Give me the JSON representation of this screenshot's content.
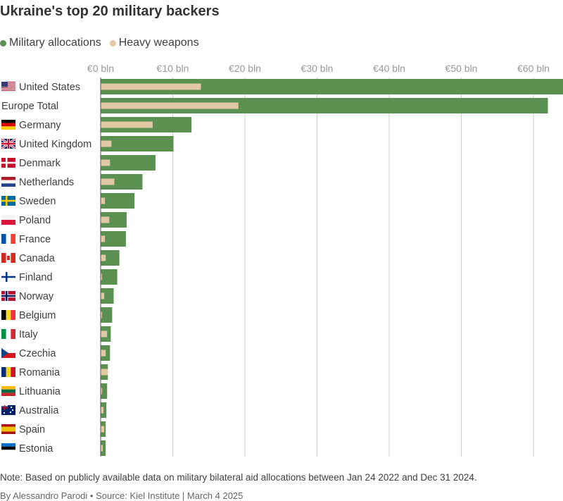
{
  "title": "Ukraine's top 20 military backers",
  "legend": [
    {
      "label": "Military allocations",
      "color": "#5a9150"
    },
    {
      "label": "Heavy weapons",
      "color": "#e0c9a4"
    }
  ],
  "note": "Note: Based on publicly available data on military bilateral aid allocations between Jan 24 2022 and Dec 31 2024.",
  "byline": "By Alessandro Parodi • Source: Kiel Institute | March 4 2025",
  "chart_data": {
    "type": "bar",
    "orientation": "horizontal",
    "xlim": [
      0,
      64
    ],
    "xticks": [
      0,
      10,
      20,
      30,
      40,
      50,
      60
    ],
    "xtick_labels": [
      "€0 bln",
      "€10 bln",
      "€20 bln",
      "€30 bln",
      "€40 bln",
      "€50 bln",
      "€60 bln"
    ],
    "grid": true,
    "categories": [
      "United States",
      "Europe Total",
      "Germany",
      "United Kingdom",
      "Denmark",
      "Netherlands",
      "Sweden",
      "Poland",
      "France",
      "Canada",
      "Finland",
      "Norway",
      "Belgium",
      "Italy",
      "Czechia",
      "Romania",
      "Lithuania",
      "Australia",
      "Spain",
      "Estonia"
    ],
    "flags": [
      "us",
      "",
      "de",
      "gb",
      "dk",
      "nl",
      "se",
      "pl",
      "fr",
      "ca",
      "fi",
      "no",
      "be",
      "it",
      "cz",
      "ro",
      "lt",
      "au",
      "es",
      "ee"
    ],
    "series": [
      {
        "name": "Military allocations",
        "color": "#5a9150",
        "values": [
          64.1,
          62.0,
          12.6,
          10.1,
          7.6,
          5.8,
          4.7,
          3.6,
          3.5,
          2.6,
          2.3,
          1.8,
          1.6,
          1.4,
          1.3,
          1.0,
          0.9,
          0.8,
          0.7,
          0.7
        ]
      },
      {
        "name": "Heavy weapons",
        "color": "#e0c9a4",
        "values": [
          13.9,
          19.1,
          7.2,
          1.5,
          1.3,
          1.9,
          0.6,
          1.2,
          0.6,
          0.7,
          0.2,
          0.5,
          0.2,
          0.9,
          0.7,
          1.0,
          0.2,
          0.4,
          0.5,
          0.3
        ]
      }
    ]
  }
}
